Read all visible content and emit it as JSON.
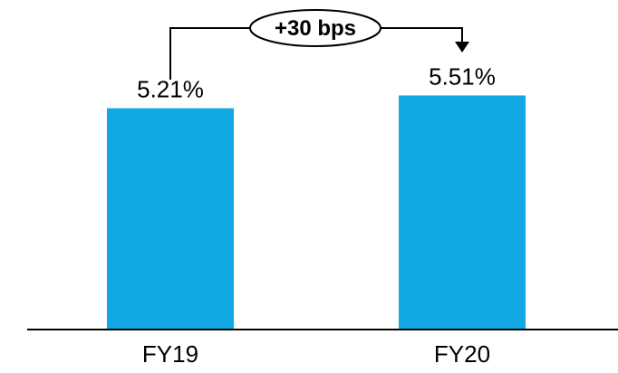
{
  "chart_data": {
    "type": "bar",
    "categories": [
      "FY19",
      "FY20"
    ],
    "values": [
      5.21,
      5.51
    ],
    "data_labels": [
      "5.21%",
      "5.51%"
    ],
    "unit": "%",
    "title": "",
    "xlabel": "",
    "ylabel": "",
    "ylim": [
      0,
      6.5
    ],
    "grid": false,
    "legend": "none",
    "bar_color": "#11A8E3",
    "annotation": {
      "text": "+30 bps",
      "from": "FY19",
      "to": "FY20"
    }
  }
}
